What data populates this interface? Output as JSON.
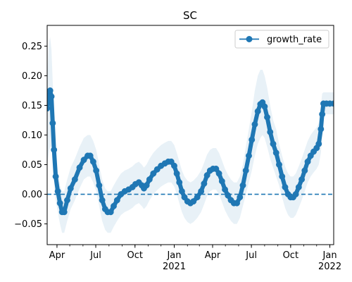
{
  "chart_data": {
    "type": "line",
    "title": "SC",
    "xlabel": "",
    "ylabel": "",
    "x_range": [
      "2020-03-09",
      "2022-01-10"
    ],
    "ylim": [
      -0.085,
      0.285
    ],
    "y_ticks": [
      -0.05,
      0.0,
      0.05,
      0.1,
      0.15,
      0.2,
      0.25
    ],
    "y_tick_labels": [
      "−0.05",
      "0.00",
      "0.05",
      "0.10",
      "0.15",
      "0.20",
      "0.25"
    ],
    "x_ticks": [
      {
        "date": "2020-04-01",
        "label": "Apr",
        "sublabel": ""
      },
      {
        "date": "2020-07-01",
        "label": "Jul",
        "sublabel": ""
      },
      {
        "date": "2020-10-01",
        "label": "Oct",
        "sublabel": ""
      },
      {
        "date": "2021-01-01",
        "label": "Jan",
        "sublabel": "2021"
      },
      {
        "date": "2021-04-01",
        "label": "Apr",
        "sublabel": ""
      },
      {
        "date": "2021-07-01",
        "label": "Jul",
        "sublabel": ""
      },
      {
        "date": "2021-10-01",
        "label": "Oct",
        "sublabel": ""
      },
      {
        "date": "2022-01-01",
        "label": "Jan",
        "sublabel": "2022"
      }
    ],
    "reference_line": {
      "y": 0.0,
      "style": "dashed",
      "color": "#1f77b4"
    },
    "legend": {
      "position": "upper right",
      "entries": [
        "growth_rate"
      ]
    },
    "grid": false,
    "series": [
      {
        "name": "growth_rate",
        "color": "#1f77b4",
        "marker": "circle",
        "band_color": "#1f77b4",
        "band_opacity": 0.1,
        "points": [
          {
            "x": "2020-03-09",
            "y": 0.145,
            "lo": 0.05,
            "hi": 0.2
          },
          {
            "x": "2020-03-13",
            "y": 0.165,
            "lo": 0.07,
            "hi": 0.255
          },
          {
            "x": "2020-03-16",
            "y": 0.175,
            "lo": 0.08,
            "hi": 0.265
          },
          {
            "x": "2020-03-19",
            "y": 0.165,
            "lo": 0.08,
            "hi": 0.245
          },
          {
            "x": "2020-03-22",
            "y": 0.12,
            "lo": 0.05,
            "hi": 0.19
          },
          {
            "x": "2020-03-25",
            "y": 0.075,
            "lo": 0.02,
            "hi": 0.14
          },
          {
            "x": "2020-03-29",
            "y": 0.03,
            "lo": -0.01,
            "hi": 0.08
          },
          {
            "x": "2020-04-03",
            "y": 0.005,
            "lo": -0.03,
            "hi": 0.04
          },
          {
            "x": "2020-04-08",
            "y": -0.015,
            "lo": -0.05,
            "hi": 0.015
          },
          {
            "x": "2020-04-13",
            "y": -0.03,
            "lo": -0.065,
            "hi": 0.005
          },
          {
            "x": "2020-04-18",
            "y": -0.03,
            "lo": -0.065,
            "hi": 0.005
          },
          {
            "x": "2020-04-25",
            "y": -0.01,
            "lo": -0.045,
            "hi": 0.025
          },
          {
            "x": "2020-05-03",
            "y": 0.01,
            "lo": -0.025,
            "hi": 0.045
          },
          {
            "x": "2020-05-13",
            "y": 0.025,
            "lo": -0.01,
            "hi": 0.06
          },
          {
            "x": "2020-05-24",
            "y": 0.045,
            "lo": 0.01,
            "hi": 0.08
          },
          {
            "x": "2020-06-03",
            "y": 0.058,
            "lo": 0.025,
            "hi": 0.095
          },
          {
            "x": "2020-06-12",
            "y": 0.065,
            "lo": 0.03,
            "hi": 0.1
          },
          {
            "x": "2020-06-18",
            "y": 0.065,
            "lo": 0.03,
            "hi": 0.1
          },
          {
            "x": "2020-06-25",
            "y": 0.055,
            "lo": 0.02,
            "hi": 0.09
          },
          {
            "x": "2020-07-02",
            "y": 0.04,
            "lo": 0.005,
            "hi": 0.075
          },
          {
            "x": "2020-07-09",
            "y": 0.015,
            "lo": -0.02,
            "hi": 0.05
          },
          {
            "x": "2020-07-16",
            "y": -0.01,
            "lo": -0.045,
            "hi": 0.025
          },
          {
            "x": "2020-07-23",
            "y": -0.025,
            "lo": -0.06,
            "hi": 0.01
          },
          {
            "x": "2020-07-29",
            "y": -0.03,
            "lo": -0.065,
            "hi": 0.005
          },
          {
            "x": "2020-08-05",
            "y": -0.03,
            "lo": -0.065,
            "hi": 0.005
          },
          {
            "x": "2020-08-12",
            "y": -0.02,
            "lo": -0.055,
            "hi": 0.015
          },
          {
            "x": "2020-08-20",
            "y": -0.01,
            "lo": -0.045,
            "hi": 0.025
          },
          {
            "x": "2020-08-29",
            "y": 0.0,
            "lo": -0.035,
            "hi": 0.035
          },
          {
            "x": "2020-09-07",
            "y": 0.005,
            "lo": -0.03,
            "hi": 0.04
          },
          {
            "x": "2020-09-16",
            "y": 0.008,
            "lo": -0.027,
            "hi": 0.043
          },
          {
            "x": "2020-09-25",
            "y": 0.012,
            "lo": -0.023,
            "hi": 0.047
          },
          {
            "x": "2020-10-02",
            "y": 0.017,
            "lo": -0.018,
            "hi": 0.052
          },
          {
            "x": "2020-10-10",
            "y": 0.02,
            "lo": -0.015,
            "hi": 0.055
          },
          {
            "x": "2020-10-17",
            "y": 0.015,
            "lo": -0.02,
            "hi": 0.05
          },
          {
            "x": "2020-10-22",
            "y": 0.01,
            "lo": -0.025,
            "hi": 0.045
          },
          {
            "x": "2020-10-28",
            "y": 0.015,
            "lo": -0.02,
            "hi": 0.05
          },
          {
            "x": "2020-11-04",
            "y": 0.025,
            "lo": -0.01,
            "hi": 0.06
          },
          {
            "x": "2020-11-13",
            "y": 0.035,
            "lo": 0.0,
            "hi": 0.07
          },
          {
            "x": "2020-11-22",
            "y": 0.042,
            "lo": 0.007,
            "hi": 0.077
          },
          {
            "x": "2020-12-01",
            "y": 0.048,
            "lo": 0.013,
            "hi": 0.083
          },
          {
            "x": "2020-12-10",
            "y": 0.052,
            "lo": 0.017,
            "hi": 0.087
          },
          {
            "x": "2020-12-18",
            "y": 0.055,
            "lo": 0.02,
            "hi": 0.09
          },
          {
            "x": "2020-12-25",
            "y": 0.055,
            "lo": 0.02,
            "hi": 0.09
          },
          {
            "x": "2021-01-01",
            "y": 0.048,
            "lo": 0.013,
            "hi": 0.083
          },
          {
            "x": "2021-01-07",
            "y": 0.035,
            "lo": 0.0,
            "hi": 0.07
          },
          {
            "x": "2021-01-13",
            "y": 0.02,
            "lo": -0.015,
            "hi": 0.055
          },
          {
            "x": "2021-01-19",
            "y": 0.005,
            "lo": -0.03,
            "hi": 0.04
          },
          {
            "x": "2021-01-25",
            "y": -0.005,
            "lo": -0.04,
            "hi": 0.03
          },
          {
            "x": "2021-02-01",
            "y": -0.012,
            "lo": -0.047,
            "hi": 0.023
          },
          {
            "x": "2021-02-08",
            "y": -0.015,
            "lo": -0.05,
            "hi": 0.02
          },
          {
            "x": "2021-02-15",
            "y": -0.012,
            "lo": -0.047,
            "hi": 0.023
          },
          {
            "x": "2021-02-24",
            "y": -0.005,
            "lo": -0.04,
            "hi": 0.03
          },
          {
            "x": "2021-03-05",
            "y": 0.005,
            "lo": -0.03,
            "hi": 0.04
          },
          {
            "x": "2021-03-12",
            "y": 0.018,
            "lo": -0.017,
            "hi": 0.053
          },
          {
            "x": "2021-03-19",
            "y": 0.032,
            "lo": -0.003,
            "hi": 0.067
          },
          {
            "x": "2021-03-26",
            "y": 0.04,
            "lo": 0.005,
            "hi": 0.075
          },
          {
            "x": "2021-04-02",
            "y": 0.043,
            "lo": 0.008,
            "hi": 0.078
          },
          {
            "x": "2021-04-09",
            "y": 0.043,
            "lo": 0.008,
            "hi": 0.078
          },
          {
            "x": "2021-04-16",
            "y": 0.035,
            "lo": 0.0,
            "hi": 0.07
          },
          {
            "x": "2021-04-23",
            "y": 0.022,
            "lo": -0.013,
            "hi": 0.057
          },
          {
            "x": "2021-04-30",
            "y": 0.008,
            "lo": -0.027,
            "hi": 0.043
          },
          {
            "x": "2021-05-07",
            "y": -0.002,
            "lo": -0.037,
            "hi": 0.033
          },
          {
            "x": "2021-05-14",
            "y": -0.01,
            "lo": -0.045,
            "hi": 0.025
          },
          {
            "x": "2021-05-21",
            "y": -0.015,
            "lo": -0.05,
            "hi": 0.02
          },
          {
            "x": "2021-05-28",
            "y": -0.015,
            "lo": -0.05,
            "hi": 0.02
          },
          {
            "x": "2021-06-04",
            "y": -0.005,
            "lo": -0.04,
            "hi": 0.03
          },
          {
            "x": "2021-06-11",
            "y": 0.015,
            "lo": -0.02,
            "hi": 0.05
          },
          {
            "x": "2021-06-18",
            "y": 0.04,
            "lo": 0.0,
            "hi": 0.08
          },
          {
            "x": "2021-06-25",
            "y": 0.065,
            "lo": 0.02,
            "hi": 0.11
          },
          {
            "x": "2021-07-02",
            "y": 0.092,
            "lo": 0.04,
            "hi": 0.14
          },
          {
            "x": "2021-07-09",
            "y": 0.118,
            "lo": 0.065,
            "hi": 0.175
          },
          {
            "x": "2021-07-16",
            "y": 0.14,
            "lo": 0.085,
            "hi": 0.2
          },
          {
            "x": "2021-07-22",
            "y": 0.152,
            "lo": 0.095,
            "hi": 0.21
          },
          {
            "x": "2021-07-27",
            "y": 0.155,
            "lo": 0.1,
            "hi": 0.21
          },
          {
            "x": "2021-08-01",
            "y": 0.148,
            "lo": 0.095,
            "hi": 0.2
          },
          {
            "x": "2021-08-07",
            "y": 0.13,
            "lo": 0.08,
            "hi": 0.18
          },
          {
            "x": "2021-08-14",
            "y": 0.105,
            "lo": 0.06,
            "hi": 0.15
          },
          {
            "x": "2021-08-21",
            "y": 0.085,
            "lo": 0.045,
            "hi": 0.125
          },
          {
            "x": "2021-08-28",
            "y": 0.07,
            "lo": 0.03,
            "hi": 0.11
          },
          {
            "x": "2021-09-04",
            "y": 0.05,
            "lo": 0.015,
            "hi": 0.085
          },
          {
            "x": "2021-09-11",
            "y": 0.03,
            "lo": -0.005,
            "hi": 0.065
          },
          {
            "x": "2021-09-18",
            "y": 0.012,
            "lo": -0.023,
            "hi": 0.047
          },
          {
            "x": "2021-09-25",
            "y": 0.0,
            "lo": -0.035,
            "hi": 0.035
          },
          {
            "x": "2021-10-01",
            "y": -0.005,
            "lo": -0.04,
            "hi": 0.03
          },
          {
            "x": "2021-10-07",
            "y": -0.005,
            "lo": -0.04,
            "hi": 0.03
          },
          {
            "x": "2021-10-13",
            "y": 0.0,
            "lo": -0.035,
            "hi": 0.035
          },
          {
            "x": "2021-10-20",
            "y": 0.012,
            "lo": -0.023,
            "hi": 0.047
          },
          {
            "x": "2021-10-27",
            "y": 0.025,
            "lo": -0.01,
            "hi": 0.06
          },
          {
            "x": "2021-11-03",
            "y": 0.04,
            "lo": 0.005,
            "hi": 0.075
          },
          {
            "x": "2021-11-10",
            "y": 0.055,
            "lo": 0.02,
            "hi": 0.09
          },
          {
            "x": "2021-11-17",
            "y": 0.065,
            "lo": 0.03,
            "hi": 0.1
          },
          {
            "x": "2021-11-24",
            "y": 0.072,
            "lo": 0.037,
            "hi": 0.107
          },
          {
            "x": "2021-12-01",
            "y": 0.078,
            "lo": 0.043,
            "hi": 0.113
          },
          {
            "x": "2021-12-06",
            "y": 0.085,
            "lo": 0.05,
            "hi": 0.12
          },
          {
            "x": "2021-12-11",
            "y": 0.11,
            "lo": 0.07,
            "hi": 0.15
          },
          {
            "x": "2021-12-14",
            "y": 0.135,
            "lo": 0.1,
            "hi": 0.17
          },
          {
            "x": "2021-12-17",
            "y": 0.153,
            "lo": 0.135,
            "hi": 0.172
          },
          {
            "x": "2021-12-24",
            "y": 0.153,
            "lo": 0.135,
            "hi": 0.172
          },
          {
            "x": "2022-01-01",
            "y": 0.153,
            "lo": 0.135,
            "hi": 0.172
          },
          {
            "x": "2022-01-10",
            "y": 0.153,
            "lo": 0.135,
            "hi": 0.172
          }
        ]
      }
    ]
  }
}
